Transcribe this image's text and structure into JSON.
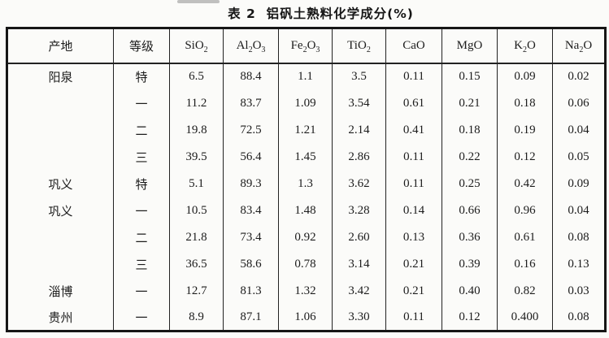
{
  "title": "表 2  铝矾土熟料化学成分(%)",
  "table": {
    "headers": [
      "产地",
      "等级",
      "SiO2",
      "Al2O3",
      "Fe2O3",
      "TiO2",
      "CaO",
      "MgO",
      "K2O",
      "Na2O"
    ],
    "rows": [
      [
        "阳泉",
        "特",
        "6.5",
        "88.4",
        "1.1",
        "3.5",
        "0.11",
        "0.15",
        "0.09",
        "0.02"
      ],
      [
        "",
        "一",
        "11.2",
        "83.7",
        "1.09",
        "3.54",
        "0.61",
        "0.21",
        "0.18",
        "0.06"
      ],
      [
        "",
        "二",
        "19.8",
        "72.5",
        "1.21",
        "2.14",
        "0.41",
        "0.18",
        "0.19",
        "0.04"
      ],
      [
        "",
        "三",
        "39.5",
        "56.4",
        "1.45",
        "2.86",
        "0.11",
        "0.22",
        "0.12",
        "0.05"
      ],
      [
        "巩义",
        "特",
        "5.1",
        "89.3",
        "1.3",
        "3.62",
        "0.11",
        "0.25",
        "0.42",
        "0.09"
      ],
      [
        "巩义",
        "一",
        "10.5",
        "83.4",
        "1.48",
        "3.28",
        "0.14",
        "0.66",
        "0.96",
        "0.04"
      ],
      [
        "",
        "二",
        "21.8",
        "73.4",
        "0.92",
        "2.60",
        "0.13",
        "0.36",
        "0.61",
        "0.08"
      ],
      [
        "",
        "三",
        "36.5",
        "58.6",
        "0.78",
        "3.14",
        "0.21",
        "0.39",
        "0.16",
        "0.13"
      ],
      [
        "淄博",
        "一",
        "12.7",
        "81.3",
        "1.32",
        "3.42",
        "0.21",
        "0.40",
        "0.82",
        "0.03"
      ],
      [
        "贵州",
        "一",
        "8.9",
        "87.1",
        "1.06",
        "3.30",
        "0.11",
        "0.12",
        "0.400",
        "0.08"
      ]
    ]
  },
  "colors": {
    "background": "#fbfbf9",
    "text": "#1c1c1c",
    "border": "#161616"
  }
}
